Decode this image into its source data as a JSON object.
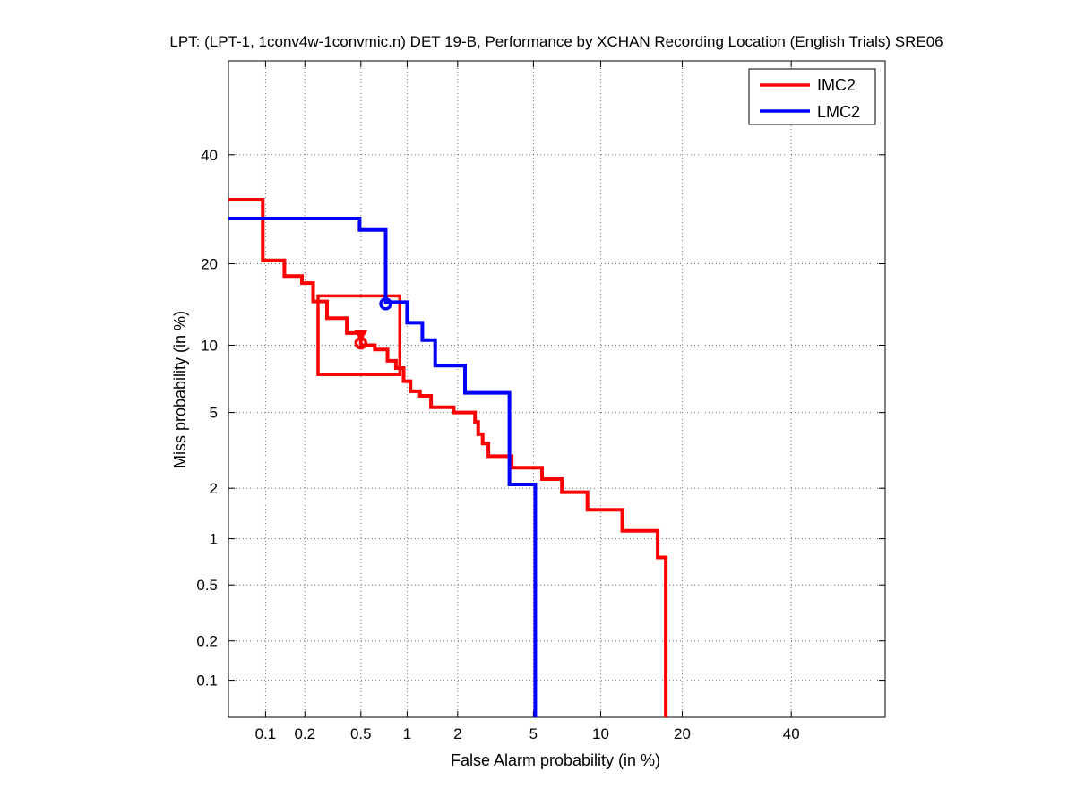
{
  "chart_data": {
    "type": "line",
    "title": "LPT: (LPT-1, 1conv4w-1convmic.n) DET 19-B,  Performance by XCHAN Recording Location (English Trials) SRE06",
    "xlabel": "False Alarm probability (in %)",
    "ylabel": "Miss probability (in %)",
    "scale": "normal-deviate (DET)",
    "xlim": [
      0.05,
      60
    ],
    "ylim": [
      0.05,
      60
    ],
    "grid": true,
    "legend_position": "top-right",
    "x_ticks": [
      0.1,
      0.2,
      0.5,
      1,
      2,
      5,
      10,
      20,
      40
    ],
    "x_tick_labels": [
      "0.1",
      "0.2",
      "0.5",
      "1",
      "2",
      "5",
      "10",
      "20",
      "40"
    ],
    "y_ticks": [
      0.1,
      0.2,
      0.5,
      1,
      2,
      5,
      10,
      20,
      40
    ],
    "y_tick_labels": [
      "0.1",
      "0.2",
      "0.5",
      "1",
      "2",
      "5",
      "10",
      "20",
      "40"
    ],
    "series": [
      {
        "name": "IMC2",
        "color": "#ff0000",
        "steps": [
          [
            0.05,
            31
          ],
          [
            0.095,
            31
          ],
          [
            0.095,
            20.5
          ],
          [
            0.14,
            20.5
          ],
          [
            0.14,
            18.2
          ],
          [
            0.19,
            18.2
          ],
          [
            0.19,
            17.2
          ],
          [
            0.23,
            17.2
          ],
          [
            0.23,
            14.8
          ],
          [
            0.29,
            14.8
          ],
          [
            0.29,
            12.8
          ],
          [
            0.4,
            12.8
          ],
          [
            0.4,
            11.2
          ],
          [
            0.5,
            11.2
          ],
          [
            0.5,
            10.0
          ],
          [
            0.62,
            10.0
          ],
          [
            0.62,
            9.6
          ],
          [
            0.75,
            9.6
          ],
          [
            0.75,
            8.6
          ],
          [
            0.85,
            8.6
          ],
          [
            0.85,
            8.0
          ],
          [
            0.95,
            8.0
          ],
          [
            0.95,
            7.0
          ],
          [
            1.05,
            7.0
          ],
          [
            1.05,
            6.3
          ],
          [
            1.2,
            6.3
          ],
          [
            1.2,
            6.0
          ],
          [
            1.4,
            6.0
          ],
          [
            1.4,
            5.3
          ],
          [
            1.9,
            5.3
          ],
          [
            1.9,
            5.0
          ],
          [
            2.5,
            5.0
          ],
          [
            2.5,
            4.5
          ],
          [
            2.6,
            4.5
          ],
          [
            2.6,
            3.9
          ],
          [
            2.75,
            3.9
          ],
          [
            2.75,
            3.5
          ],
          [
            2.95,
            3.5
          ],
          [
            2.95,
            3.0
          ],
          [
            3.9,
            3.0
          ],
          [
            3.9,
            2.6
          ],
          [
            5.5,
            2.6
          ],
          [
            5.5,
            2.25
          ],
          [
            6.8,
            2.25
          ],
          [
            6.8,
            1.9
          ],
          [
            8.8,
            1.9
          ],
          [
            8.8,
            1.5
          ],
          [
            12.2,
            1.5
          ],
          [
            12.2,
            1.12
          ],
          [
            16.5,
            1.12
          ],
          [
            16.5,
            0.76
          ],
          [
            17.6,
            0.76
          ],
          [
            17.6,
            0.05
          ]
        ],
        "operating_point_circle": [
          0.5,
          10.2
        ],
        "operating_point_triangle": [
          0.5,
          11.0
        ],
        "confidence_box": {
          "x": [
            0.25,
            0.9
          ],
          "y": [
            7.5,
            15.5
          ]
        }
      },
      {
        "name": "LMC2",
        "color": "#0000ff",
        "steps": [
          [
            0.05,
            27.5
          ],
          [
            0.49,
            27.5
          ],
          [
            0.49,
            25.5
          ],
          [
            0.73,
            25.5
          ],
          [
            0.73,
            14.7
          ],
          [
            1.0,
            14.7
          ],
          [
            1.0,
            12.3
          ],
          [
            1.24,
            12.3
          ],
          [
            1.24,
            10.5
          ],
          [
            1.48,
            10.5
          ],
          [
            1.48,
            8.2
          ],
          [
            2.2,
            8.2
          ],
          [
            2.2,
            6.2
          ],
          [
            3.8,
            6.2
          ],
          [
            3.8,
            2.1
          ],
          [
            5.1,
            2.1
          ],
          [
            5.1,
            0.05
          ]
        ],
        "operating_point_circle": [
          0.73,
          14.5
        ]
      }
    ]
  }
}
